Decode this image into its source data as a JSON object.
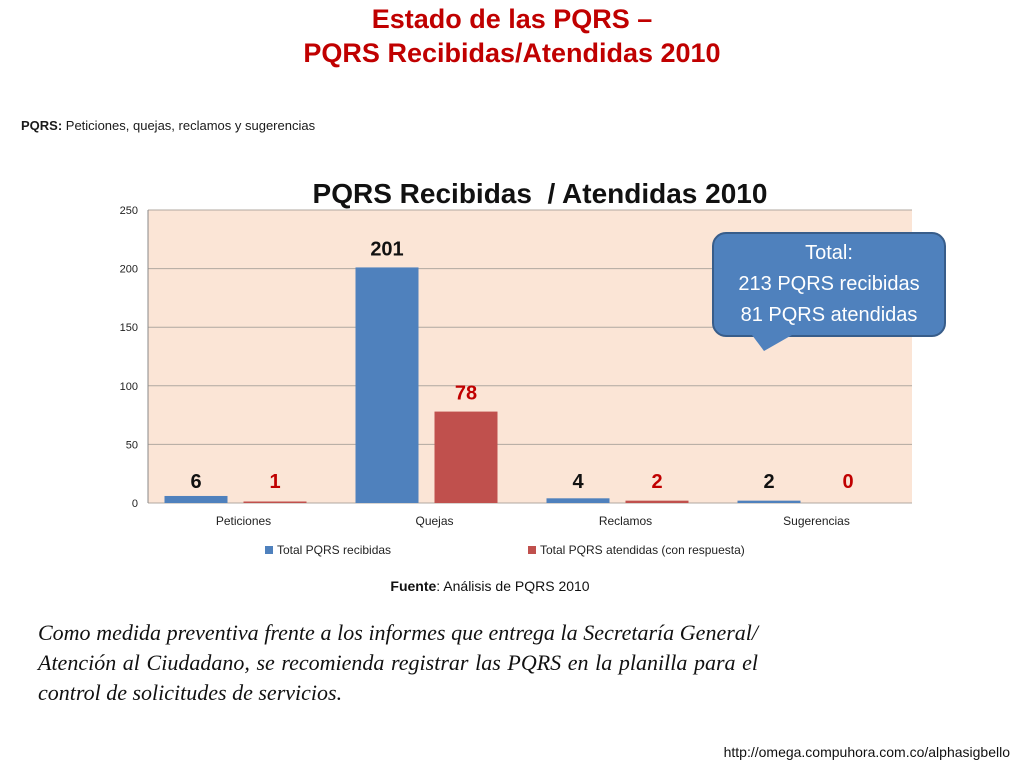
{
  "slide": {
    "title_line1": "Estado de las PQRS –",
    "title_line2": "PQRS Recibidas/Atendidas 2010",
    "definition_label": "PQRS:",
    "definition_text": " Peticiones, quejas, reclamos y sugerencias",
    "source_label": "Fuente",
    "source_text": ": Análisis de PQRS 2010",
    "note": "Como medida preventiva frente a los informes que entrega la Secretaría General/ Atención al Ciudadano, se recomienda registrar las PQRS en la planilla para el control de solicitudes de servicios.",
    "url": "http://omega.compuhora.com.co/alphasigbello"
  },
  "callout": {
    "line1_label": "Total",
    "line1_suffix": ":",
    "line2": "213 PQRS recibidas",
    "line3": "81 PQRS atendidas"
  },
  "colors": {
    "series1": "#4f81bd",
    "series2": "#c0504d",
    "plot_bg": "#fbe5d6",
    "grid": "#b0a8a0",
    "title_red": "#c00000"
  },
  "chart_data": {
    "type": "bar",
    "title": "PQRS Recibidas  / Atendidas 2010",
    "categories": [
      "Peticiones",
      "Quejas",
      "Reclamos",
      "Sugerencias"
    ],
    "series": [
      {
        "name": "Total PQRS recibidas",
        "values": [
          6,
          201,
          4,
          2
        ]
      },
      {
        "name": "Total PQRS atendidas (con respuesta)",
        "values": [
          1,
          78,
          2,
          0
        ]
      }
    ],
    "ylim": [
      0,
      250
    ],
    "yticks": [
      "0",
      "50",
      "100",
      "150",
      "200",
      "250"
    ],
    "grid": true,
    "legend": "bottom",
    "data_labels": true
  }
}
